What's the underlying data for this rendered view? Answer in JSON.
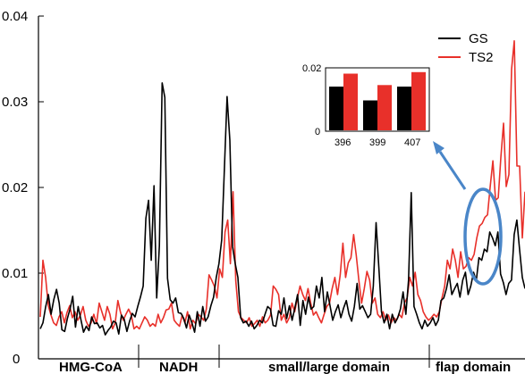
{
  "chart_data": [
    {
      "type": "line",
      "title": "",
      "xlabel": "",
      "ylabel": "",
      "ylim": [
        0,
        0.04
      ],
      "y_ticks": [
        0,
        0.01,
        0.02,
        0.03,
        0.04
      ],
      "y_tick_labels": [
        "0",
        "0.01",
        "0.02",
        "0.03",
        "0.04"
      ],
      "grid": false,
      "legend_position": "top-right",
      "region_labels": [
        "HMG-CoA",
        "NADH",
        "small/large domain",
        "flap domain"
      ],
      "series": [
        {
          "name": "GS",
          "color": "#000000",
          "values": [
            0.0035,
            0.0042,
            0.0061,
            0.0075,
            0.0052,
            0.0069,
            0.0081,
            0.0065,
            0.0034,
            0.0032,
            0.0047,
            0.0058,
            0.0073,
            0.0037,
            0.0061,
            0.0046,
            0.0031,
            0.0038,
            0.0033,
            0.0049,
            0.0041,
            0.0042,
            0.0036,
            0.0039,
            0.0028,
            0.0033,
            0.0037,
            0.0044,
            0.0042,
            0.0029,
            0.0051,
            0.0046,
            0.0032,
            0.0044,
            0.0053,
            0.0049,
            0.0061,
            0.0072,
            0.0085,
            0.0164,
            0.0185,
            0.0115,
            0.0202,
            0.0071,
            0.0132,
            0.0322,
            0.0305,
            0.0094,
            0.0069,
            0.0065,
            0.0071,
            0.0054,
            0.0053,
            0.0047,
            0.0036,
            0.0051,
            0.0042,
            0.0031,
            0.0055,
            0.0038,
            0.0061,
            0.0044,
            0.0049,
            0.0062,
            0.0072,
            0.0095,
            0.0111,
            0.0139,
            0.0222,
            0.0306,
            0.0255,
            0.0131,
            0.0111,
            0.0095,
            0.0048,
            0.0042,
            0.0044,
            0.0038,
            0.0044,
            0.0035,
            0.0039,
            0.0045,
            0.0042,
            0.0052,
            0.0061,
            0.0058,
            0.0039,
            0.0038,
            0.0056,
            0.0052,
            0.0071,
            0.0047,
            0.0062,
            0.0045,
            0.0059,
            0.0075,
            0.0039,
            0.0068,
            0.0052,
            0.0072,
            0.0058,
            0.0061,
            0.0085,
            0.0071,
            0.0095,
            0.0055,
            0.0078,
            0.0062,
            0.0045,
            0.0055,
            0.0063,
            0.0048,
            0.0059,
            0.0068,
            0.0052,
            0.0044,
            0.0061,
            0.0088,
            0.0058,
            0.0062,
            0.0055,
            0.0048,
            0.0052,
            0.0085,
            0.0159,
            0.0108,
            0.0055,
            0.0042,
            0.0052,
            0.0035,
            0.0052,
            0.0042,
            0.0048,
            0.0058,
            0.0078,
            0.0052,
            0.0092,
            0.0194,
            0.0061,
            0.0052,
            0.0042,
            0.0035,
            0.0045,
            0.0038,
            0.0042,
            0.0048,
            0.0039,
            0.0045,
            0.0068,
            0.0071,
            0.0082,
            0.0098,
            0.0075,
            0.0082,
            0.0088,
            0.0072,
            0.0092,
            0.0101,
            0.0075,
            0.0085,
            0.0101,
            0.0091,
            0.0118,
            0.0115,
            0.0128,
            0.0125,
            0.0148,
            0.0141,
            0.0132,
            0.0148,
            0.0099,
            0.0089,
            0.0075,
            0.0088,
            0.0092,
            0.0145,
            0.0162,
            0.0128,
            0.0095,
            0.0082
          ]
        },
        {
          "name": "TS2",
          "color": "#e8302a",
          "values": [
            0.0049,
            0.0115,
            0.0095,
            0.0062,
            0.0051,
            0.0042,
            0.0039,
            0.0049,
            0.0055,
            0.0042,
            0.0054,
            0.0062,
            0.0048,
            0.0055,
            0.0045,
            0.0051,
            0.0061,
            0.0045,
            0.0038,
            0.0042,
            0.0052,
            0.0041,
            0.0065,
            0.0055,
            0.0045,
            0.0061,
            0.0052,
            0.0035,
            0.0042,
            0.0068,
            0.0054,
            0.0045,
            0.0052,
            0.0058,
            0.0051,
            0.0035,
            0.0038,
            0.0035,
            0.0042,
            0.0049,
            0.0045,
            0.0038,
            0.0041,
            0.0038,
            0.0052,
            0.0042,
            0.0048,
            0.0057,
            0.0058,
            0.0065,
            0.0045,
            0.0041,
            0.0038,
            0.0051,
            0.0042,
            0.0055,
            0.0035,
            0.0045,
            0.0041,
            0.0052,
            0.0049,
            0.0045,
            0.0058,
            0.0098,
            0.0092,
            0.0085,
            0.0071,
            0.0105,
            0.0095,
            0.0148,
            0.0162,
            0.0111,
            0.0195,
            0.0091,
            0.0055,
            0.0048,
            0.0045,
            0.0042,
            0.0048,
            0.0038,
            0.0041,
            0.0045,
            0.0038,
            0.0049,
            0.0042,
            0.0045,
            0.0051,
            0.0085,
            0.0081,
            0.0075,
            0.0045,
            0.0052,
            0.0042,
            0.0048,
            0.0065,
            0.0055,
            0.0071,
            0.0085,
            0.0075,
            0.0068,
            0.0082,
            0.0065,
            0.0051,
            0.0055,
            0.0048,
            0.0042,
            0.0052,
            0.0061,
            0.0065,
            0.0082,
            0.0095,
            0.0075,
            0.0098,
            0.0135,
            0.0095,
            0.0112,
            0.0118,
            0.0145,
            0.0121,
            0.0091,
            0.0065,
            0.0082,
            0.0102,
            0.0092,
            0.0065,
            0.0071,
            0.0052,
            0.0048,
            0.0055,
            0.0045,
            0.0051,
            0.0042,
            0.0048,
            0.0045,
            0.0052,
            0.0048,
            0.0065,
            0.0071,
            0.0095,
            0.0085,
            0.0101,
            0.0075,
            0.0068,
            0.0055,
            0.0049,
            0.0045,
            0.0048,
            0.0052,
            0.0049,
            0.0055,
            0.0071,
            0.0085,
            0.0115,
            0.0105,
            0.0128,
            0.0115,
            0.0095,
            0.0125,
            0.0105,
            0.0108,
            0.0118,
            0.0115,
            0.0122,
            0.0141,
            0.0155,
            0.0158,
            0.0165,
            0.0168,
            0.0201,
            0.0231,
            0.0185,
            0.0188,
            0.0235,
            0.0275,
            0.0201,
            0.0215,
            0.0338,
            0.0371,
            0.0225,
            0.0225,
            0.0141,
            0.0195
          ]
        }
      ]
    },
    {
      "type": "bar",
      "title": "",
      "categories": [
        "396",
        "399",
        "407"
      ],
      "ylim": [
        0,
        0.02
      ],
      "y_ticks": [
        0,
        0.02
      ],
      "y_tick_labels": [
        "0",
        "0.02"
      ],
      "series": [
        {
          "name": "GS",
          "color": "#000000",
          "values": [
            0.0142,
            0.0097,
            0.0142
          ]
        },
        {
          "name": "TS2",
          "color": "#e8302a",
          "values": [
            0.0184,
            0.0147,
            0.0189
          ]
        }
      ]
    }
  ],
  "annotations": {
    "ellipse_color": "#4a86c8",
    "arrow_color": "#4a86c8"
  }
}
